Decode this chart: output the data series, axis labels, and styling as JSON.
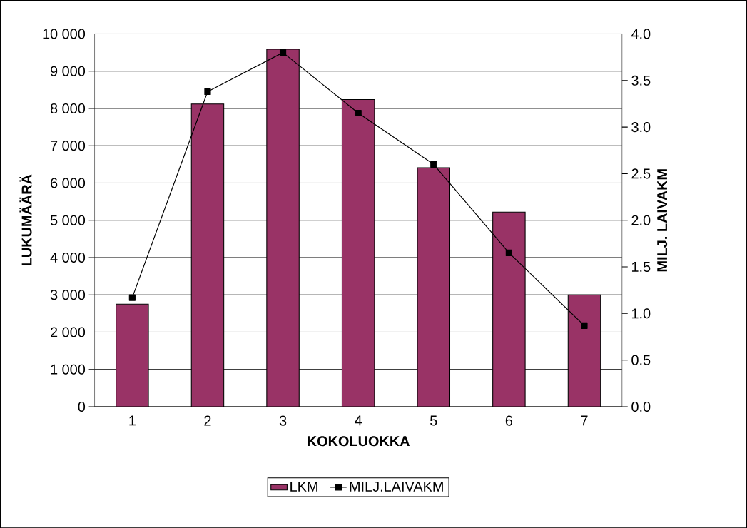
{
  "chart_data": {
    "type": "bar",
    "xlabel": "KOKOLUOKKA",
    "ylabel": "LUKUMÄÄRÄ",
    "y2label": "MILJ. LAIVAKM",
    "categories": [
      "1",
      "2",
      "3",
      "4",
      "5",
      "6",
      "7"
    ],
    "series": [
      {
        "name": "LKM",
        "color": "#993366",
        "values": [
          2750,
          8120,
          9590,
          8240,
          6410,
          5220,
          3000
        ]
      },
      {
        "name": "MILJ.LAIVAKM",
        "type": "line",
        "axis": "y2",
        "color": "#000000",
        "values": [
          1.17,
          3.38,
          3.8,
          3.15,
          2.6,
          1.65,
          0.87
        ]
      }
    ],
    "ylim": [
      0,
      10000
    ],
    "yticks": [
      0,
      {
        "value": 1000,
        "label": "1 000"
      },
      {
        "value": 2000,
        "label": "2 000"
      },
      {
        "value": 3000,
        "label": "3 000"
      },
      {
        "value": 4000,
        "label": "4 000"
      },
      {
        "value": 5000,
        "label": "5 000"
      },
      {
        "value": 6000,
        "label": "6 000"
      },
      {
        "value": 7000,
        "label": "7 000"
      },
      {
        "value": 8000,
        "label": "8 000"
      },
      {
        "value": 9000,
        "label": "9 000"
      },
      {
        "value": 10000,
        "label": "10 000"
      }
    ],
    "y2lim": [
      0,
      4
    ],
    "y2ticks": [
      {
        "value": 0,
        "label": "0.0"
      },
      {
        "value": 0.5,
        "label": "0.5"
      },
      {
        "value": 1,
        "label": "1.0"
      },
      {
        "value": 1.5,
        "label": "1.5"
      },
      {
        "value": 2,
        "label": "2.0"
      },
      {
        "value": 2.5,
        "label": "2.5"
      },
      {
        "value": 3,
        "label": "3.0"
      },
      {
        "value": 3.5,
        "label": "3.5"
      },
      {
        "value": 4,
        "label": "4.0"
      }
    ],
    "grid": "y",
    "legend": "bottom",
    "marker": "square",
    "line_style": "solid"
  }
}
